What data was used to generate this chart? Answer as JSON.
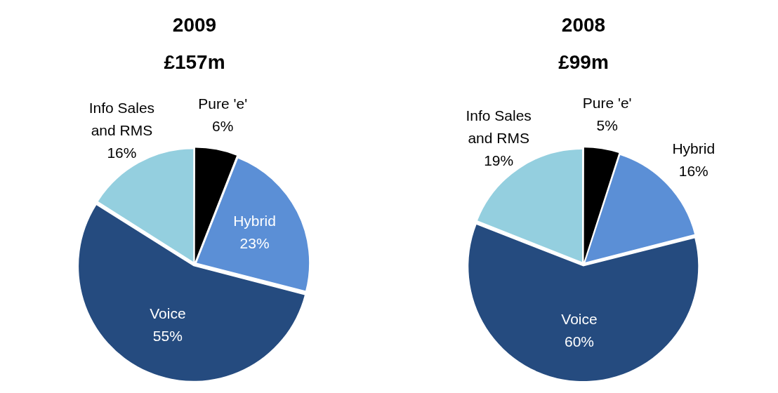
{
  "chart_data": [
    {
      "type": "pie",
      "title": "2009",
      "subtitle": "£157m",
      "categories": [
        "Pure 'e'",
        "Hybrid",
        "Voice",
        "Info Sales and RMS"
      ],
      "values": [
        6,
        23,
        55,
        16
      ],
      "value_labels": [
        "6%",
        "23%",
        "55%",
        "16%"
      ],
      "colors": [
        "#000000",
        "#5b8fd6",
        "#254b7f",
        "#94cfdf"
      ]
    },
    {
      "type": "pie",
      "title": "2008",
      "subtitle": "£99m",
      "categories": [
        "Pure 'e'",
        "Hybrid",
        "Voice",
        "Info Sales and RMS"
      ],
      "values": [
        5,
        16,
        60,
        19
      ],
      "value_labels": [
        "5%",
        "16%",
        "60%",
        "19%"
      ],
      "colors": [
        "#000000",
        "#5b8fd6",
        "#254b7f",
        "#94cfdf"
      ]
    }
  ]
}
